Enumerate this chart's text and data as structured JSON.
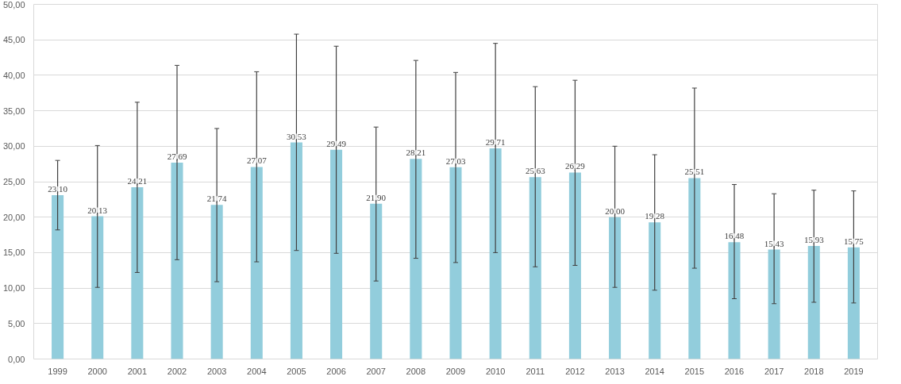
{
  "chart_data": {
    "type": "bar",
    "categories": [
      "1999",
      "2000",
      "2001",
      "2002",
      "2003",
      "2004",
      "2005",
      "2006",
      "2007",
      "2008",
      "2009",
      "2010",
      "2011",
      "2012",
      "2013",
      "2014",
      "2015",
      "2016",
      "2017",
      "2018",
      "2019"
    ],
    "values": [
      23.1,
      20.13,
      24.21,
      27.69,
      21.74,
      27.07,
      30.53,
      29.49,
      21.9,
      28.21,
      27.03,
      29.71,
      25.63,
      26.29,
      20.0,
      19.28,
      25.51,
      16.48,
      15.43,
      15.93,
      15.75
    ],
    "value_labels": [
      "23,10",
      "20,13",
      "24,21",
      "27,69",
      "21,74",
      "27,07",
      "30,53",
      "29,49",
      "21,90",
      "28,21",
      "27,03",
      "29,71",
      "25,63",
      "26,29",
      "20,00",
      "19,28",
      "25,51",
      "16,48",
      "15,43",
      "15,93",
      "15,75"
    ],
    "errors": [
      [
        18.2,
        28.0
      ],
      [
        10.1,
        30.1
      ],
      [
        12.2,
        36.2
      ],
      [
        14.0,
        41.4
      ],
      [
        10.9,
        32.5
      ],
      [
        13.7,
        40.5
      ],
      [
        15.3,
        45.8
      ],
      [
        14.9,
        44.1
      ],
      [
        11.0,
        32.7
      ],
      [
        14.2,
        42.1
      ],
      [
        13.6,
        40.4
      ],
      [
        15.0,
        44.5
      ],
      [
        13.0,
        38.4
      ],
      [
        13.2,
        39.3
      ],
      [
        10.1,
        30.0
      ],
      [
        9.7,
        28.8
      ],
      [
        12.8,
        38.2
      ],
      [
        8.5,
        24.6
      ],
      [
        7.8,
        23.3
      ],
      [
        8.0,
        23.8
      ],
      [
        7.9,
        23.7
      ]
    ],
    "color": "#92cddc",
    "ylim": [
      0,
      50
    ],
    "yticks": [
      {
        "value": 0,
        "label": "0,00"
      },
      {
        "value": 5,
        "label": "5,00"
      },
      {
        "value": 10,
        "label": "10,00"
      },
      {
        "value": 15,
        "label": "15,00"
      },
      {
        "value": 20,
        "label": "20,00"
      },
      {
        "value": 25,
        "label": "25,00"
      },
      {
        "value": 30,
        "label": "30,00"
      },
      {
        "value": 35,
        "label": "35,00"
      },
      {
        "value": 40,
        "label": "40,00"
      },
      {
        "value": 45,
        "label": "45,00"
      },
      {
        "value": 50,
        "label": "50,00"
      }
    ],
    "grid": "y"
  }
}
